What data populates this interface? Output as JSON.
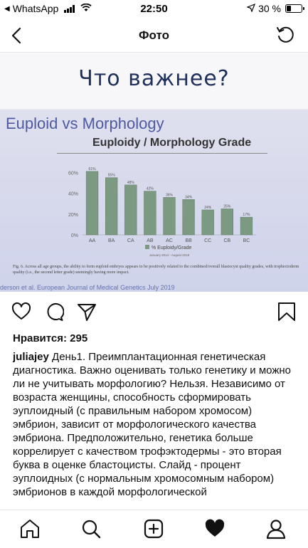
{
  "status_bar": {
    "back_app": "WhatsApp",
    "time": "22:50",
    "battery": "30 %",
    "battery_level": 0.3
  },
  "header": {
    "title": "Фото"
  },
  "photo": {
    "handwritten": "Что важнее?",
    "slide_title": "Euploid vs Morphology",
    "caption": "Fig. 6. Across all age groups, the ability to form euploid embryos appears to be positively related to the combined/overall blastocyst quality grades, with trophectoderm quality (i.e., the second letter grade) seemingly having more impact.",
    "citation": "derson et al. European Journal of Medical Genetics July 2019"
  },
  "chart_data": {
    "type": "bar",
    "title": "Euploidy / Morphology Grade",
    "categories": [
      "AA",
      "BA",
      "CA",
      "AB",
      "AC",
      "BB",
      "CC",
      "CB",
      "BC"
    ],
    "values": [
      61,
      55,
      48,
      42,
      36,
      34,
      24,
      25,
      17
    ],
    "value_labels": [
      "61%",
      "55%",
      "48%",
      "42%",
      "36%",
      "34%",
      "24%",
      "25%",
      "17%"
    ],
    "ylim": [
      0,
      65
    ],
    "yticks": [
      0,
      20,
      40,
      60
    ],
    "ytick_labels": [
      "0%",
      "20%",
      "40%",
      "60%"
    ],
    "legend": "% Euploidy/Grade",
    "legend_position": "bottom",
    "subtitle": "January 2014 - August 2018",
    "grid": false,
    "bar_color": "#7c9a82"
  },
  "post": {
    "likes": "Нравится: 295",
    "username": "juliajey",
    "caption": "День1. Преимплантационная генетическая диагностика. Важно оценивать только генетику и можно ли не учитывать морфологию? Нельзя. Независимо от возраста женщины, способность сформировать эуплоидный (с правильным набором хромосом) эмбрион, зависит от морфологического качества эмбриона. Предположительно, генетика больше коррелирует с качеством трофэктодермы - это вторая буква в оценке бластоцисты. Слайд - процент эуплоидных (с нормальным хромосомным набором) эмбрионов в каждой морфологической"
  },
  "icons": {
    "like": "heart-outline-icon",
    "comment": "comment-icon",
    "share": "send-icon",
    "save": "bookmark-icon",
    "home": "home-icon",
    "search": "search-icon",
    "add": "add-post-icon",
    "activity": "heart-filled-icon",
    "profile": "profile-icon"
  }
}
